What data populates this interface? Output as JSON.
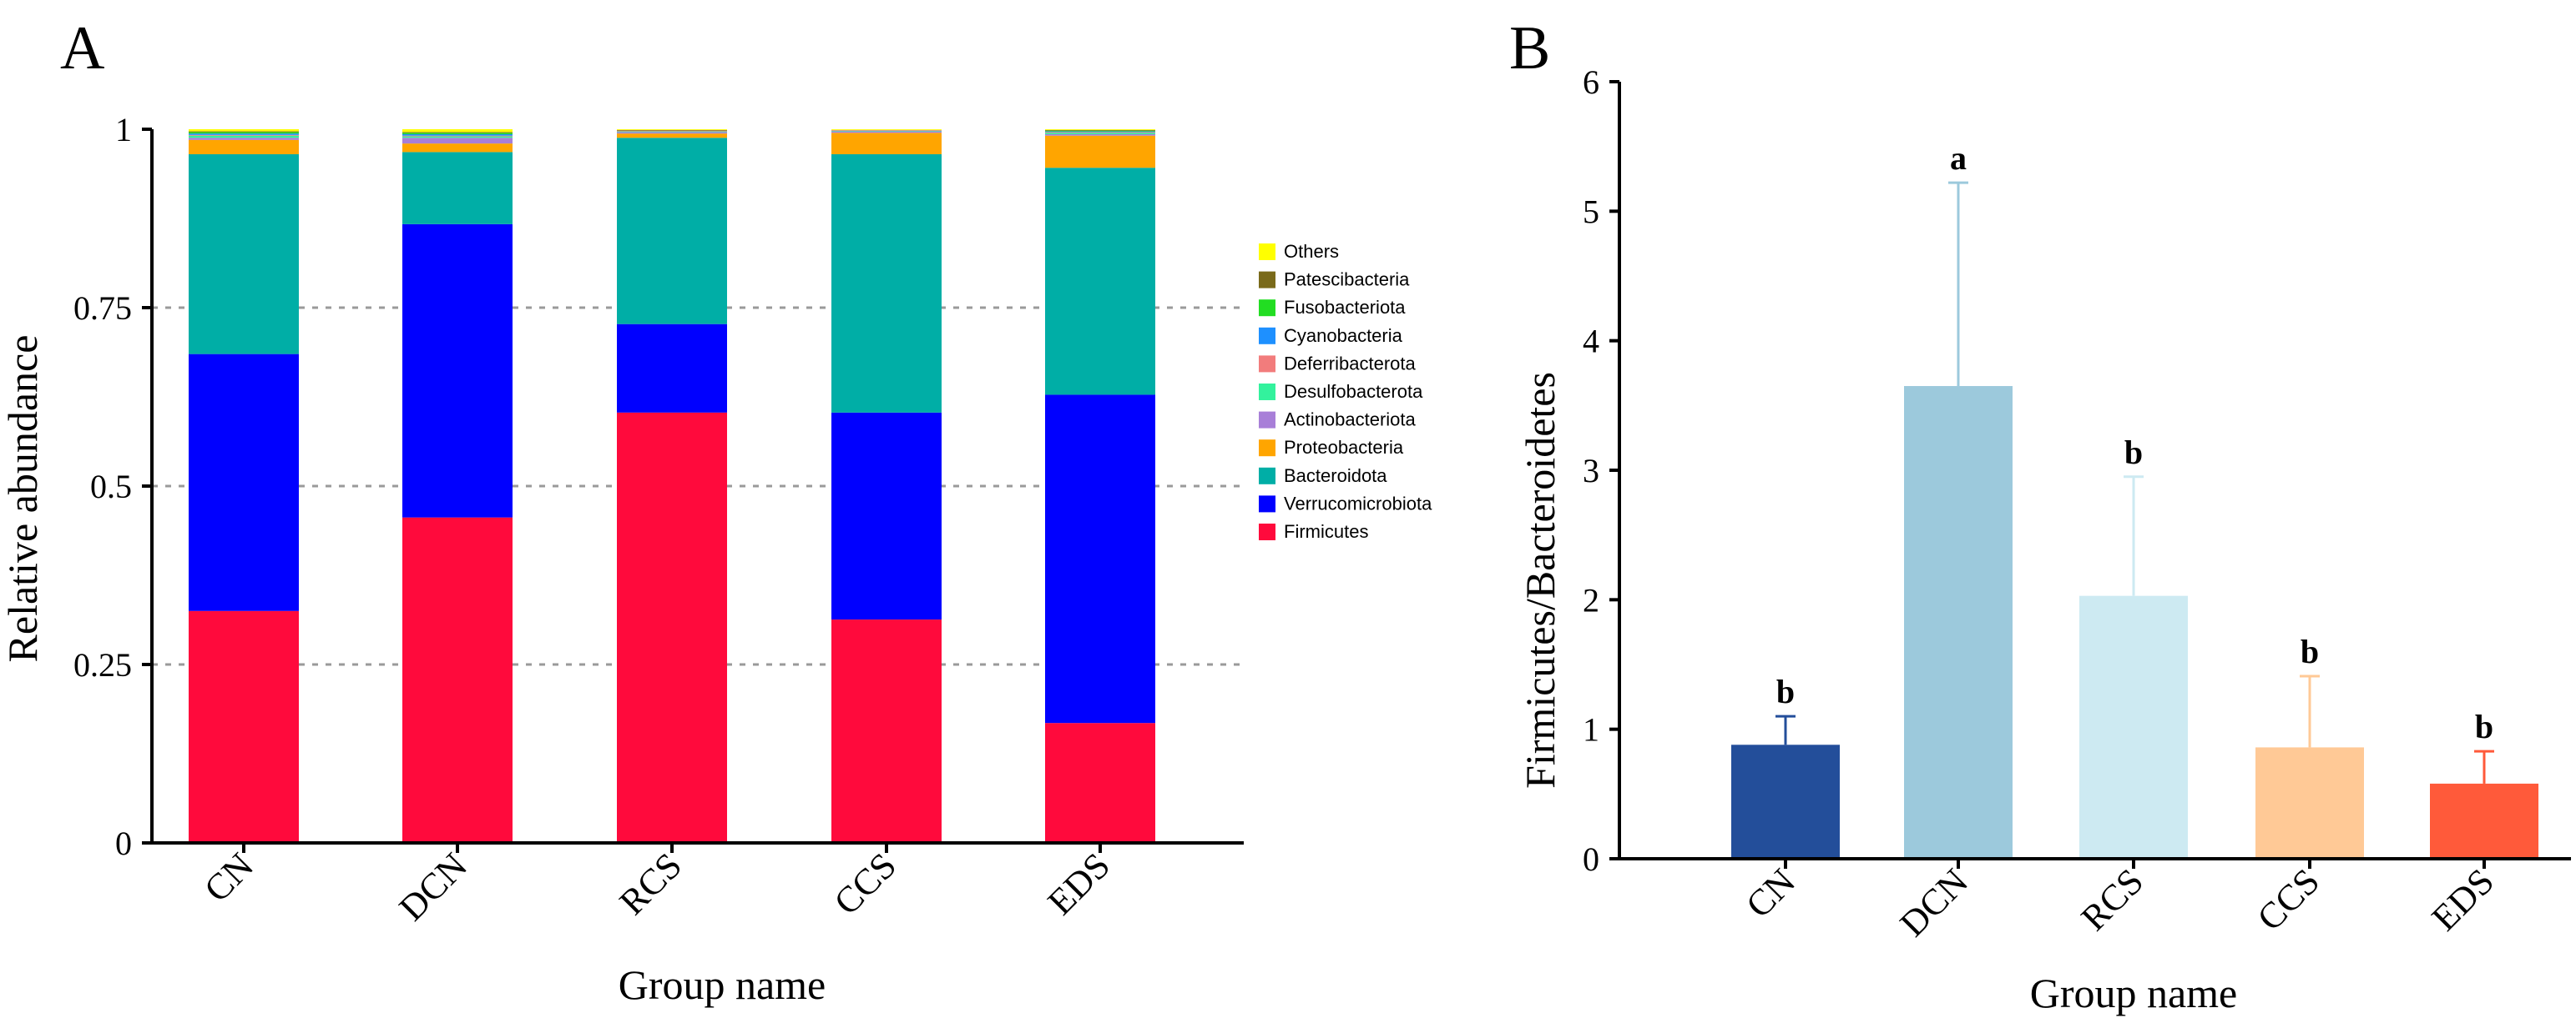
{
  "chart_data": [
    {
      "type": "bar",
      "stacked": true,
      "panel_label": "A",
      "title": "",
      "xlabel": "Group name",
      "ylabel": "Relative abundance",
      "ylim": [
        0,
        1
      ],
      "yticks": [
        0,
        0.25,
        0.5,
        0.75,
        1
      ],
      "ytick_labels": [
        "0",
        "0.25",
        "0.5",
        "0.75",
        "1"
      ],
      "grid": "dashed horizontal",
      "legend_position": "right",
      "categories": [
        "CN",
        "DCN",
        "RCS",
        "CCS",
        "EDS"
      ],
      "series": [
        {
          "name": "Firmicutes",
          "color": "#FF0A3C",
          "values": [
            0.325,
            0.456,
            0.603,
            0.313,
            0.168
          ]
        },
        {
          "name": "Verrucomicrobiota",
          "color": "#0000FF",
          "values": [
            0.36,
            0.411,
            0.124,
            0.29,
            0.46
          ]
        },
        {
          "name": "Bacteroidota",
          "color": "#00AEA6",
          "values": [
            0.28,
            0.101,
            0.261,
            0.362,
            0.318
          ]
        },
        {
          "name": "Proteobacteria",
          "color": "#FFA500",
          "values": [
            0.02,
            0.012,
            0.006,
            0.03,
            0.045
          ]
        },
        {
          "name": "Actinobacteriota",
          "color": "#A87FD8",
          "values": [
            0.003,
            0.008,
            0.002,
            0.002,
            0.002
          ]
        },
        {
          "name": "Desulfobacterota",
          "color": "#33F29D",
          "values": [
            0.003,
            0.002,
            0.001,
            0.001,
            0.002
          ]
        },
        {
          "name": "Deferribacterota",
          "color": "#F27C7C",
          "values": [
            0.001,
            0.001,
            0.001,
            0.001,
            0.001
          ]
        },
        {
          "name": "Cyanobacteria",
          "color": "#1E90FF",
          "values": [
            0.002,
            0.002,
            0.0,
            0.0,
            0.001
          ]
        },
        {
          "name": "Fusobacteriota",
          "color": "#22DD22",
          "values": [
            0.002,
            0.002,
            0.0,
            0.0,
            0.001
          ]
        },
        {
          "name": "Patescibacteria",
          "color": "#7A6A1A",
          "values": [
            0.001,
            0.001,
            0.001,
            0.0,
            0.001
          ]
        },
        {
          "name": "Others",
          "color": "#FFFF00",
          "values": [
            0.003,
            0.004,
            0.001,
            0.001,
            0.001
          ]
        }
      ],
      "legend_order": [
        "Others",
        "Patescibacteria",
        "Fusobacteriota",
        "Cyanobacteria",
        "Deferribacterota",
        "Desulfobacterota",
        "Actinobacteriota",
        "Proteobacteria",
        "Bacteroidota",
        "Verrucomicrobiota",
        "Firmicutes"
      ]
    },
    {
      "type": "bar",
      "panel_label": "B",
      "title": "",
      "xlabel": "Group name",
      "ylabel": "Firmicutes/Bacteroidetes",
      "ylim": [
        0,
        6
      ],
      "yticks": [
        0,
        1,
        2,
        3,
        4,
        5,
        6
      ],
      "ytick_labels": [
        "0",
        "1",
        "2",
        "3",
        "4",
        "5",
        "6"
      ],
      "categories": [
        "CN",
        "DCN",
        "RCS",
        "CCS",
        "EDS"
      ],
      "values": [
        0.88,
        3.65,
        2.03,
        0.86,
        0.58
      ],
      "error_upper": [
        0.22,
        1.57,
        0.92,
        0.55,
        0.25
      ],
      "colors": [
        "#234E9A",
        "#9CC9DC",
        "#CDEAF2",
        "#FFC996",
        "#FF5A3A"
      ],
      "significance_letters": [
        "b",
        "a",
        "b",
        "b",
        "b"
      ]
    }
  ]
}
